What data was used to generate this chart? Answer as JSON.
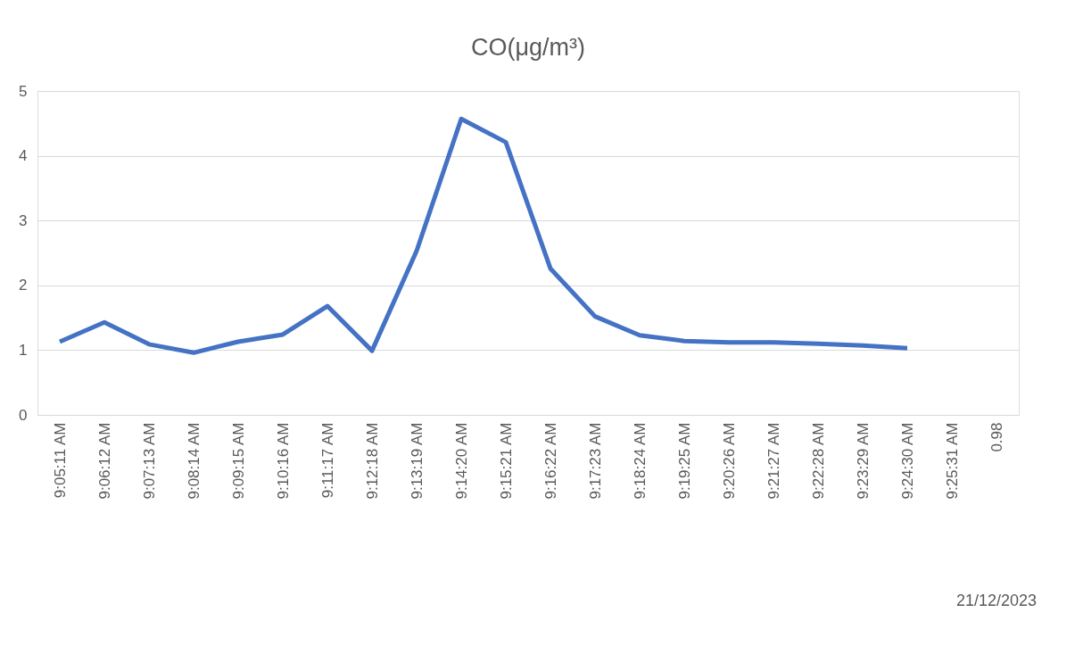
{
  "chart_data": {
    "type": "line",
    "title": "CO(μg/m³)",
    "categories": [
      "9:05:11 AM",
      "9:06:12 AM",
      "9:07:13 AM",
      "9:08:14 AM",
      "9:09:15 AM",
      "9:10:16 AM",
      "9:11:17 AM",
      "9:12:18 AM",
      "9:13:19 AM",
      "9:14:20 AM",
      "9:15:21 AM",
      "9:16:22 AM",
      "9:17:23 AM",
      "9:18:24 AM",
      "9:19:25 AM",
      "9:20:26 AM",
      "9:21:27 AM",
      "9:22:28 AM",
      "9:23:29 AM",
      "9:24:30 AM",
      "9:25:31 AM",
      "0.98"
    ],
    "series": [
      {
        "color": "#4472c4",
        "values": [
          1.13,
          1.43,
          1.09,
          0.96,
          1.13,
          1.24,
          1.68,
          0.99,
          2.53,
          4.57,
          4.21,
          2.26,
          1.52,
          1.23,
          1.14,
          1.12,
          1.12,
          1.1,
          1.07,
          1.03,
          null,
          null
        ]
      }
    ],
    "ylim": [
      0,
      5
    ],
    "yticks": [
      0,
      1,
      2,
      3,
      4,
      5
    ],
    "grid": "y",
    "marker": "none",
    "line_style": "solid",
    "annotations": [
      "21/12/2023"
    ]
  }
}
